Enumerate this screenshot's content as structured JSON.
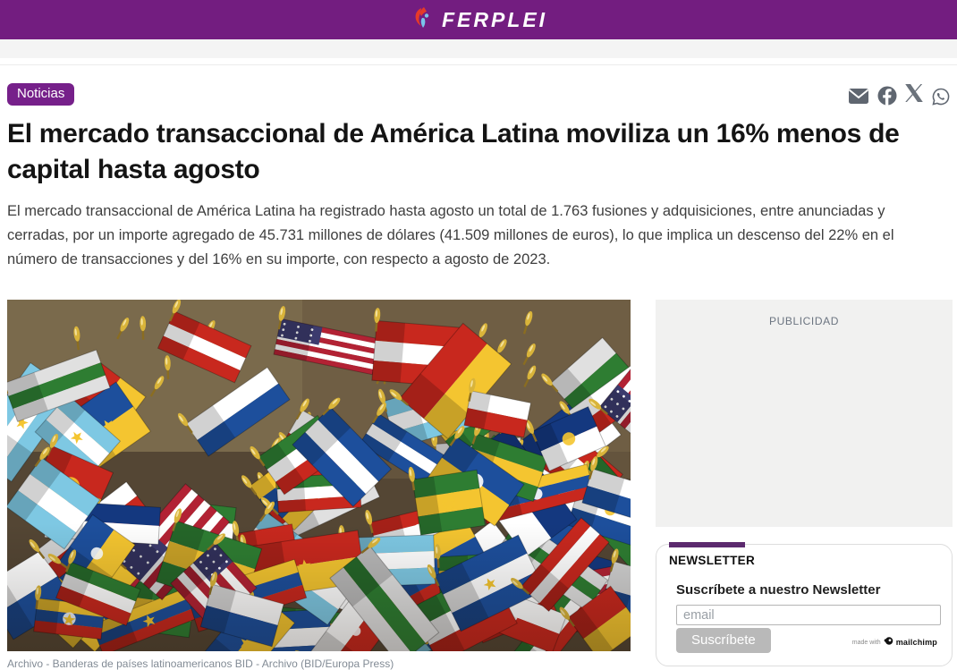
{
  "colors": {
    "header_purple": "#731d80",
    "badge_purple": "#76208a",
    "accent_bar": "#5c2a6e",
    "icon_gray": "#5f6670"
  },
  "header": {
    "brand": "FERPLEI",
    "logo_icon": "ferplei-swoosh"
  },
  "share": {
    "icons": [
      "email",
      "facebook",
      "x",
      "whatsapp"
    ]
  },
  "article": {
    "category": "Noticias",
    "title": "El mercado transaccional de América Latina moviliza un 16% menos de capital hasta agosto",
    "lede": "El mercado transaccional de América Latina ha registrado hasta agosto un total de 1.763 fusiones y adquisiciones, entre anunciadas y cerradas, por un importe agregado de 45.731 millones de dólares (41.509 millones de euros), lo que implica un descenso del 22% en el número de transacciones y del 16% en su importe, con respecto a agosto de 2023.",
    "image_caption": "Archivo - Banderas de países latinoamericanos BID - Archivo (BID/Europa Press)"
  },
  "sidebar": {
    "ad_label": "PUBLICIDAD",
    "newsletter": {
      "section_title": "NEWSLETTER",
      "heading": "Suscríbete a nuestro Newsletter",
      "email_placeholder": "email",
      "email_value": "",
      "subscribe_label": "Suscríbete",
      "made_with": "made with",
      "provider": "mailchimp"
    }
  }
}
